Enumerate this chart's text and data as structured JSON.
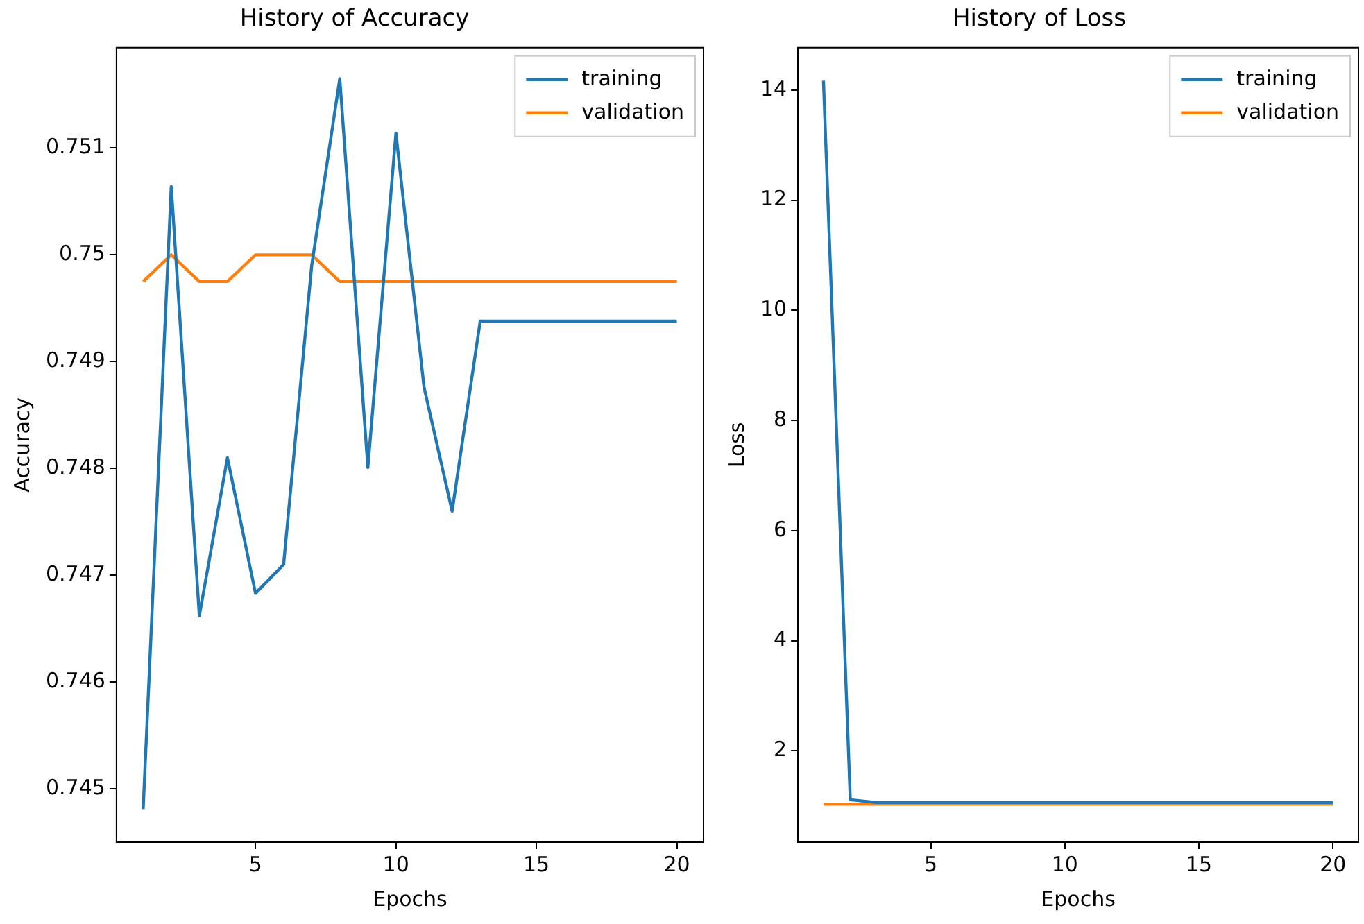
{
  "chart_data": [
    {
      "type": "line",
      "title": "History of Accuracy",
      "xlabel": "Epochs",
      "ylabel": "Accuracy",
      "x": [
        1,
        2,
        3,
        4,
        5,
        6,
        7,
        8,
        9,
        10,
        11,
        12,
        13,
        14,
        15,
        16,
        17,
        18,
        19,
        20
      ],
      "series": [
        {
          "name": "training",
          "color": "#1f77b4",
          "values": [
            0.74481,
            0.75064,
            0.74662,
            0.7481,
            0.74683,
            0.7471,
            0.7499,
            0.75165,
            0.74801,
            0.75114,
            0.74876,
            0.7476,
            0.74938,
            0.74938,
            0.74938,
            0.74938,
            0.74938,
            0.74938,
            0.74938,
            0.74938
          ]
        },
        {
          "name": "validation",
          "color": "#ff7f0e",
          "values": [
            0.74975,
            0.75,
            0.74975,
            0.74975,
            0.75,
            0.75,
            0.75,
            0.74975,
            0.74975,
            0.74975,
            0.74975,
            0.74975,
            0.74975,
            0.74975,
            0.74975,
            0.74975,
            0.74975,
            0.74975,
            0.74975,
            0.74975
          ]
        }
      ],
      "xlim": [
        0.05,
        20.95
      ],
      "xticks": [
        5,
        10,
        15,
        20
      ],
      "ylim": [
        0.7445,
        0.75194
      ],
      "yticks": [
        0.745,
        0.746,
        0.747,
        0.748,
        0.749,
        0.75,
        0.751
      ],
      "grid": false,
      "legend": "top right",
      "marker": "none"
    },
    {
      "type": "line",
      "title": "History of Loss",
      "xlabel": "Epochs",
      "ylabel": "Loss",
      "x": [
        1,
        2,
        3,
        4,
        5,
        6,
        7,
        8,
        9,
        10,
        11,
        12,
        13,
        14,
        15,
        16,
        17,
        18,
        19,
        20
      ],
      "series": [
        {
          "name": "training",
          "color": "#1f77b4",
          "values": [
            14.17,
            1.11,
            1.06,
            1.06,
            1.06,
            1.06,
            1.06,
            1.06,
            1.06,
            1.06,
            1.06,
            1.06,
            1.06,
            1.06,
            1.06,
            1.06,
            1.06,
            1.06,
            1.06,
            1.06
          ]
        },
        {
          "name": "validation",
          "color": "#ff7f0e",
          "values": [
            1.03,
            1.03,
            1.03,
            1.03,
            1.03,
            1.03,
            1.03,
            1.03,
            1.03,
            1.03,
            1.03,
            1.03,
            1.03,
            1.03,
            1.03,
            1.03,
            1.03,
            1.03,
            1.03,
            1.03
          ]
        }
      ],
      "xlim": [
        0.05,
        20.95
      ],
      "xticks": [
        5,
        10,
        15,
        20
      ],
      "ylim": [
        0.34,
        14.77
      ],
      "yticks": [
        2,
        4,
        6,
        8,
        10,
        12,
        14
      ],
      "grid": false,
      "legend": "top right",
      "marker": "none"
    }
  ]
}
